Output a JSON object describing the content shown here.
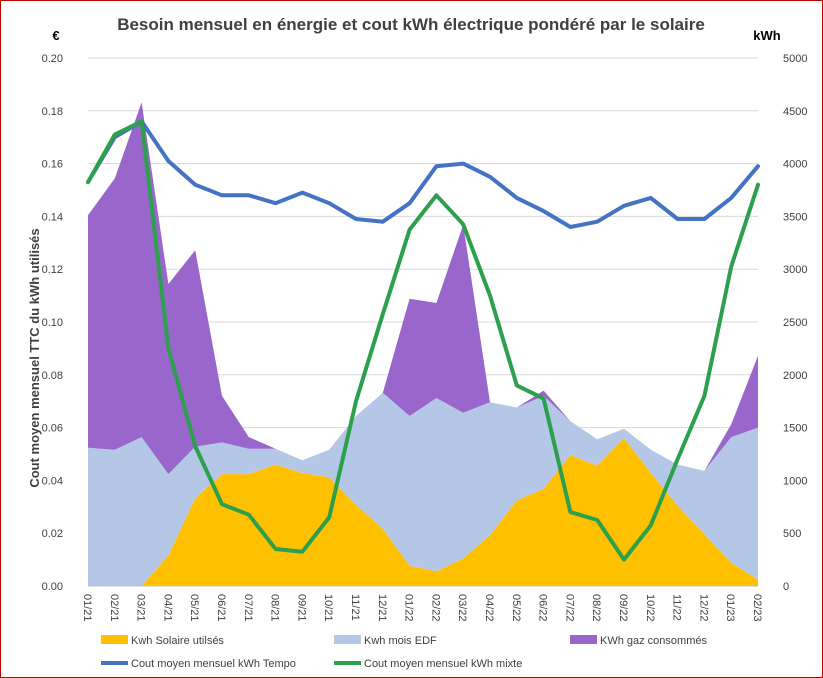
{
  "chart_data": {
    "type": "area",
    "title": "Besoin mensuel en énergie et cout kWh électrique pondéré par le solaire",
    "ylabel": "Cout moyen mensuel TTC du kWh utilisés",
    "y_unit": "€",
    "y2_unit": "kWh",
    "ylim": [
      0,
      0.2
    ],
    "y2lim": [
      0,
      5000
    ],
    "yticks": [
      "0.00",
      "0.02",
      "0.04",
      "0.06",
      "0.08",
      "0.10",
      "0.12",
      "0.14",
      "0.16",
      "0.18",
      "0.20"
    ],
    "y2ticks": [
      "0",
      "500",
      "1000",
      "1500",
      "2000",
      "2500",
      "3000",
      "3500",
      "4000",
      "4500",
      "5000"
    ],
    "categories": [
      "01/21",
      "02/21",
      "03/21",
      "04/21",
      "05/21",
      "06/21",
      "07/21",
      "08/21",
      "09/21",
      "10/21",
      "11/21",
      "12/21",
      "01/22",
      "02/22",
      "03/22",
      "04/22",
      "05/22",
      "06/22",
      "07/22",
      "08/22",
      "09/22",
      "10/22",
      "11/22",
      "12/22",
      "01/23",
      "02/23"
    ],
    "grid": true,
    "legend_position": "bottom",
    "stacked_series": [
      {
        "name": "Kwh Solaire utilsés",
        "axis": "right",
        "color": "#ffc000",
        "values": [
          0,
          0,
          0,
          290,
          830,
          1060,
          1060,
          1150,
          1070,
          1030,
          770,
          540,
          190,
          140,
          260,
          480,
          810,
          920,
          1240,
          1140,
          1400,
          1070,
          760,
          490,
          220,
          60
        ]
      },
      {
        "name": "Kwh mois EDF",
        "axis": "right",
        "color": "#b4c7e7",
        "values": [
          1310,
          1290,
          1410,
          770,
          490,
          300,
          240,
          150,
          120,
          260,
          840,
          1290,
          1420,
          1640,
          1380,
          1260,
          880,
          880,
          320,
          250,
          90,
          220,
          390,
          600,
          1190,
          1440
        ]
      },
      {
        "name": "KWh gaz consommés",
        "axis": "right",
        "color": "#9966cc",
        "values": [
          2200,
          2570,
          3170,
          1800,
          1860,
          440,
          110,
          0,
          0,
          0,
          0,
          0,
          1110,
          900,
          1780,
          0,
          0,
          50,
          0,
          0,
          0,
          0,
          0,
          0,
          120,
          680
        ]
      }
    ],
    "line_series": [
      {
        "name": "Cout moyen mensuel kWh Tempo",
        "axis": "left",
        "color": "#4472c4",
        "values": [
          0.153,
          0.17,
          0.176,
          0.161,
          0.152,
          0.148,
          0.148,
          0.145,
          0.149,
          0.145,
          0.139,
          0.138,
          0.145,
          0.159,
          0.16,
          0.155,
          0.147,
          0.142,
          0.136,
          0.138,
          0.144,
          0.147,
          0.139,
          0.139,
          0.147,
          0.159
        ]
      },
      {
        "name": "Cout moyen mensuel kWh mixte",
        "axis": "left",
        "color": "#2ca04c",
        "values": [
          0.153,
          0.171,
          0.176,
          0.09,
          0.053,
          0.031,
          0.027,
          0.014,
          0.013,
          0.026,
          0.07,
          0.103,
          0.135,
          0.148,
          0.137,
          0.11,
          0.076,
          0.071,
          0.028,
          0.025,
          0.01,
          0.023,
          0.048,
          0.072,
          0.121,
          0.152
        ]
      }
    ]
  }
}
